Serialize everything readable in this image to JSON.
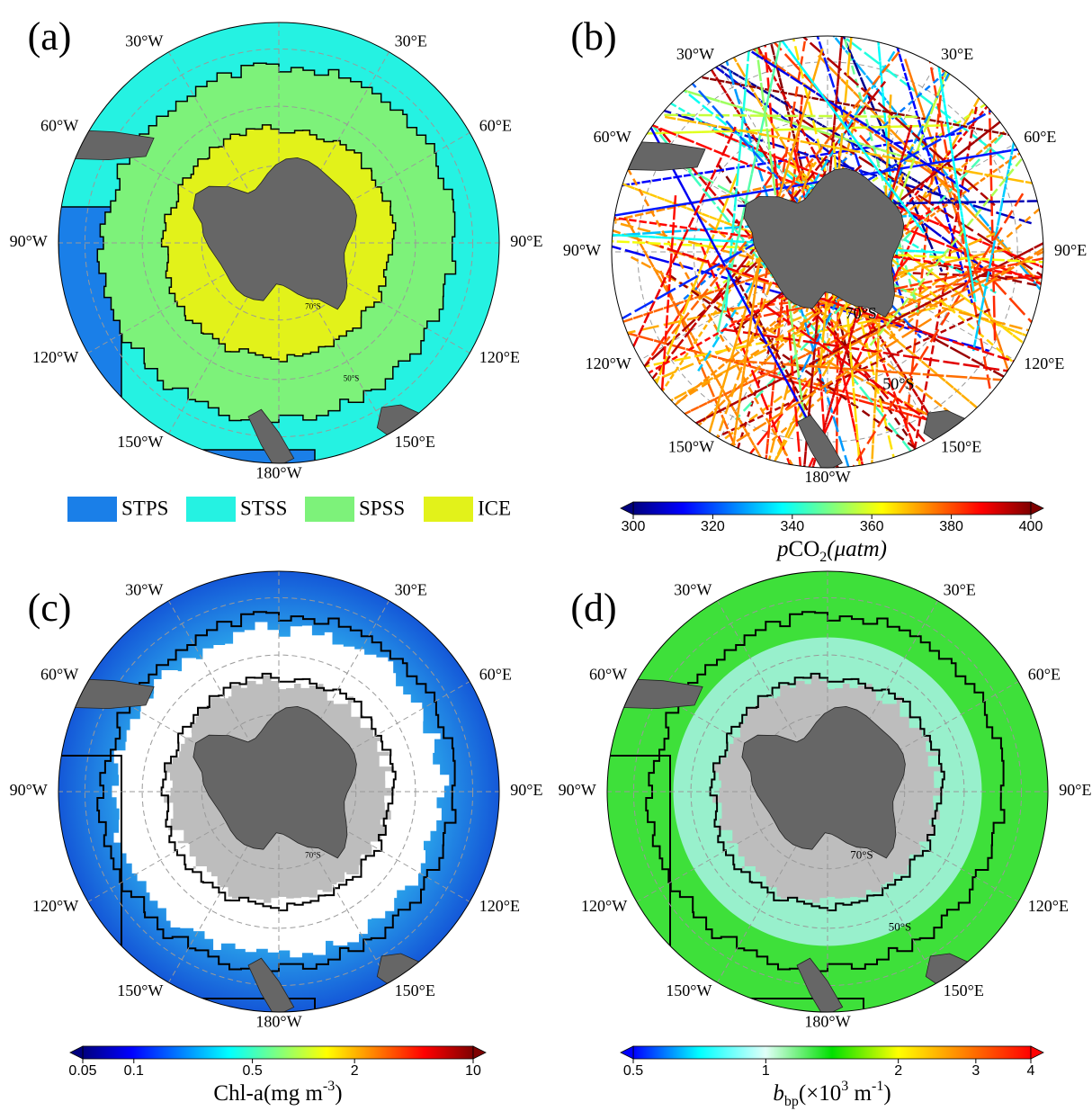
{
  "longitude_labels": [
    "30°E",
    "60°E",
    "90°E",
    "120°E",
    "150°E",
    "180°W",
    "150°W",
    "120°W",
    "90°W",
    "60°W",
    "30°W"
  ],
  "panels": [
    {
      "label": "(a)",
      "latitude_labels": [
        "70°S",
        "50°S"
      ],
      "legend": [
        {
          "name": "STPS",
          "color": "#1a7fe8"
        },
        {
          "name": "STSS",
          "color": "#25f2e2"
        },
        {
          "name": "SPSS",
          "color": "#7df27a"
        },
        {
          "name": "ICE",
          "color": "#e2f21a"
        }
      ]
    },
    {
      "label": "(b)",
      "latitude_labels": [
        "70°S",
        "50°S"
      ],
      "colorbar": {
        "lim": [
          300,
          400
        ],
        "ticks": [
          300,
          320,
          340,
          360,
          380,
          400
        ],
        "scale": "linear",
        "colors": [
          "#00007f",
          "#0000ff",
          "#007fff",
          "#00ffff",
          "#7fff7f",
          "#ffff00",
          "#ff7f00",
          "#ff0000",
          "#7f0000"
        ],
        "label_parts": [
          {
            "text": "p",
            "style": "italic"
          },
          {
            "text": "CO",
            "style": "normal"
          },
          {
            "text": "2",
            "style": "sub"
          },
          {
            "text": "(μatm)",
            "style": "italic"
          }
        ]
      }
    },
    {
      "label": "(c)",
      "latitude_labels": [
        "70°S"
      ],
      "colorbar": {
        "lim": [
          0.05,
          10
        ],
        "ticks": [
          0.05,
          0.1,
          0.5,
          2,
          10
        ],
        "scale": "log",
        "colors": [
          "#00007f",
          "#0000ff",
          "#007fff",
          "#00ffff",
          "#7fff7f",
          "#ffff00",
          "#ff7f00",
          "#ff0000",
          "#7f0000"
        ],
        "label_parts": [
          {
            "text": "Chl-a(mg m",
            "style": "normal"
          },
          {
            "text": "-3",
            "style": "sup"
          },
          {
            "text": ")",
            "style": "normal"
          }
        ]
      }
    },
    {
      "label": "(d)",
      "latitude_labels": [
        "70°S",
        "50°S"
      ],
      "colorbar": {
        "lim": [
          0.5,
          4
        ],
        "ticks": [
          0.5,
          1,
          2,
          3,
          4
        ],
        "scale": "log",
        "colors": [
          "#0000ff",
          "#00ffff",
          "#e0fff8",
          "#00e000",
          "#ffff00",
          "#ff8000",
          "#ff0000"
        ],
        "label_parts": [
          {
            "text": "b",
            "style": "italic"
          },
          {
            "text": "bp",
            "style": "sub"
          },
          {
            "text": "(×10",
            "style": "normal"
          },
          {
            "text": "3",
            "style": "sup"
          },
          {
            "text": " m",
            "style": "normal"
          },
          {
            "text": "-1",
            "style": "sup"
          },
          {
            "text": ")",
            "style": "normal"
          }
        ]
      }
    }
  ]
}
